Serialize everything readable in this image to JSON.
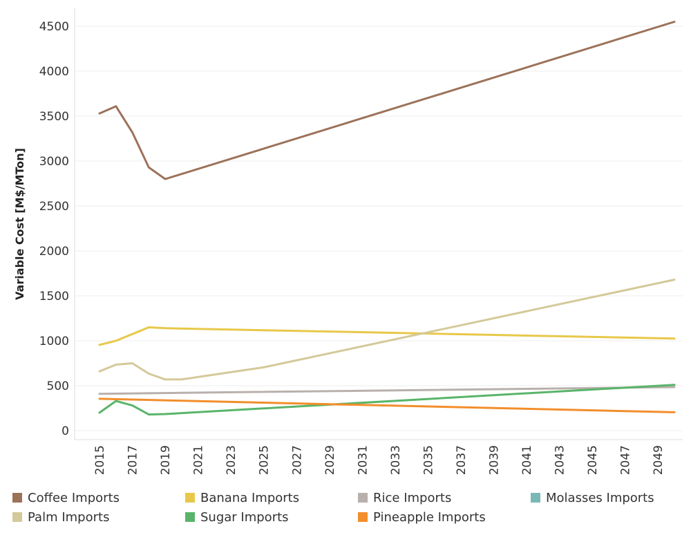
{
  "chart_data": {
    "type": "line",
    "title": "",
    "xlabel": "",
    "ylabel": "Variable Cost [M$/MTon]",
    "ylim": [
      0,
      4700
    ],
    "xlim": [
      2015,
      2050
    ],
    "grid": true,
    "legend_position": "bottom",
    "x_ticks": [
      "2015",
      "2017",
      "2019",
      "2021",
      "2023",
      "2025",
      "2027",
      "2029",
      "2031",
      "2033",
      "2035",
      "2037",
      "2039",
      "2041",
      "2043",
      "2045",
      "2047",
      "2049"
    ],
    "y_ticks": [
      0,
      500,
      1000,
      1500,
      2000,
      2500,
      3000,
      3500,
      4000,
      4500
    ],
    "series": [
      {
        "name": "Coffee Imports",
        "color": "#9c7259",
        "x": [
          2015,
          2016,
          2017,
          2018,
          2019,
          2050
        ],
        "values": [
          3530,
          3610,
          3320,
          2930,
          2800,
          4550
        ]
      },
      {
        "name": "Banana Imports",
        "color": "#e8c84a",
        "x": [
          2015,
          2016,
          2017,
          2018,
          2019,
          2050
        ],
        "values": [
          955,
          1000,
          1075,
          1150,
          1140,
          1025
        ]
      },
      {
        "name": "Rice Imports",
        "color": "#b8b0ac",
        "x": [
          2015,
          2050
        ],
        "values": [
          410,
          485
        ]
      },
      {
        "name": "Molasses Imports",
        "color": "#7ab8b6",
        "x": [],
        "values": []
      },
      {
        "name": "Palm Imports",
        "color": "#d4c99a",
        "x": [
          2015,
          2016,
          2017,
          2018,
          2019,
          2020,
          2025,
          2050
        ],
        "values": [
          660,
          735,
          750,
          635,
          570,
          570,
          705,
          1680
        ]
      },
      {
        "name": "Sugar Imports",
        "color": "#59b46a",
        "x": [
          2015,
          2016,
          2017,
          2018,
          2019,
          2050
        ],
        "values": [
          200,
          330,
          280,
          180,
          185,
          510
        ]
      },
      {
        "name": "Pineapple Imports",
        "color": "#f28e2b",
        "x": [
          2015,
          2050
        ],
        "values": [
          355,
          205
        ]
      }
    ]
  }
}
